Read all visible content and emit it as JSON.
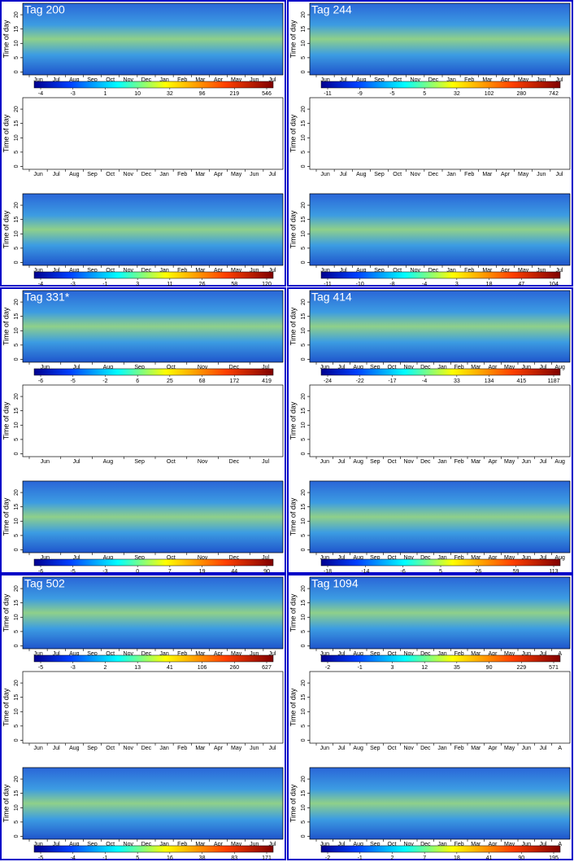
{
  "y_label": "Time of day",
  "ylim": [
    -1,
    24
  ],
  "yticks": [
    0,
    5,
    10,
    15,
    20
  ],
  "panels": [
    {
      "title": "Tag 200",
      "months": [
        "Jun",
        "Jul",
        "Aug",
        "Sep",
        "Oct",
        "Nov",
        "Dec",
        "Jan",
        "Feb",
        "Mar",
        "Apr",
        "May",
        "Jun",
        "Jul"
      ],
      "colorbar_top": [
        -4,
        -3,
        1,
        10,
        32,
        96,
        219,
        546
      ],
      "colorbar_bottom": [
        -4,
        -3,
        -1,
        3,
        11,
        26,
        58,
        120
      ]
    },
    {
      "title": "Tag 244",
      "months": [
        "Jun",
        "Jul",
        "Aug",
        "Sep",
        "Oct",
        "Nov",
        "Dec",
        "Jan",
        "Feb",
        "Mar",
        "Apr",
        "May",
        "Jun",
        "Jul"
      ],
      "colorbar_top": [
        -11,
        -9,
        -5,
        5,
        32,
        102,
        280,
        742
      ],
      "colorbar_bottom": [
        -11,
        -10,
        -8,
        -4,
        3,
        18,
        47,
        104
      ]
    },
    {
      "title": "Tag 331*",
      "months": [
        "Jun",
        "Jul",
        "Aug",
        "Sep",
        "Oct",
        "Nov",
        "Dec",
        "Jul"
      ],
      "colorbar_top": [
        -6,
        -5,
        -2,
        6,
        25,
        68,
        172,
        419
      ],
      "colorbar_bottom": [
        -6,
        -5,
        -3,
        0,
        7,
        19,
        44,
        90
      ]
    },
    {
      "title": "Tag 414",
      "months": [
        "Jun",
        "Jul",
        "Aug",
        "Sep",
        "Oct",
        "Nov",
        "Dec",
        "Jan",
        "Feb",
        "Mar",
        "Apr",
        "May",
        "Jun",
        "Jul",
        "Aug"
      ],
      "colorbar_top": [
        -24,
        -22,
        -17,
        -4,
        33,
        134,
        415,
        1187
      ],
      "colorbar_bottom": [
        -18,
        -14,
        -6,
        5,
        26,
        59,
        113
      ]
    },
    {
      "title": "Tag 502",
      "months": [
        "Jun",
        "Jul",
        "Aug",
        "Sep",
        "Oct",
        "Nov",
        "Dec",
        "Jan",
        "Feb",
        "Mar",
        "Apr",
        "May",
        "Jun",
        "Jul"
      ],
      "colorbar_top": [
        -5,
        -3,
        2,
        13,
        41,
        106,
        260,
        627
      ],
      "colorbar_bottom": [
        -5,
        -4,
        -1,
        5,
        16,
        38,
        83,
        171
      ]
    },
    {
      "title": "Tag 1094",
      "months": [
        "Jun",
        "Jul",
        "Aug",
        "Sep",
        "Oct",
        "Nov",
        "Dec",
        "Jan",
        "Feb",
        "Mar",
        "Apr",
        "May",
        "Jun",
        "Jul",
        "A"
      ],
      "colorbar_top": [
        -2,
        -1,
        3,
        12,
        35,
        90,
        229,
        571
      ],
      "colorbar_bottom": [
        -2,
        -1,
        2,
        7,
        18,
        41,
        90,
        195
      ]
    }
  ]
}
